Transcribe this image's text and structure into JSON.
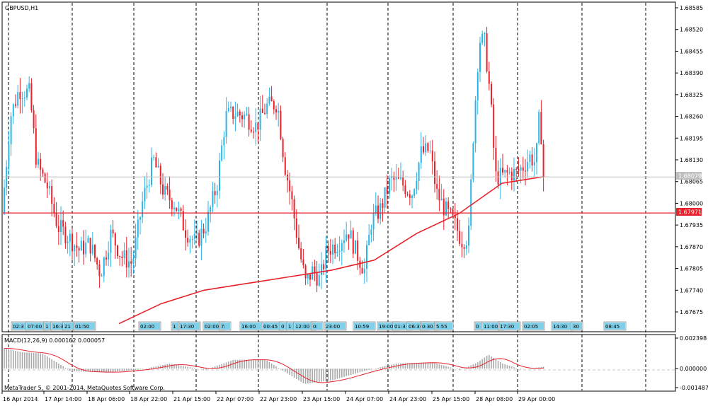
{
  "window": {
    "symbol_label": "GBPUSD,H1",
    "footer": "MetaTrader 5, © 2001-2014, MetaQuotes Software Corp."
  },
  "colors": {
    "bull": "#2ab5e8",
    "bear": "#e8212a",
    "ma": "#e8212a",
    "hline": "#e8212a",
    "bid": "#c0c0c0",
    "macd_hist": "#a9a9a9",
    "signal": "#e8212a",
    "grid": "#000000",
    "event_label": "#7fd0e8"
  },
  "price_axis": {
    "ticks": [
      "1.68585",
      "1.68520",
      "1.68455",
      "1.68390",
      "1.68325",
      "1.68260",
      "1.68195",
      "1.68130",
      "1.68065",
      "1.68000",
      "1.67935",
      "1.67870",
      "1.67805",
      "1.67740",
      "1.67675"
    ],
    "current_bid": "1.68079",
    "hline_label": "1.67971"
  },
  "time_axis": {
    "labels": [
      "16 Apr 2014",
      "17 Apr 14:00",
      "18 Apr 06:00",
      "18 Apr 22:00",
      "21 Apr 15:00",
      "22 Apr 07:00",
      "22 Apr 23:00",
      "23 Apr 15:00",
      "24 Apr 07:00",
      "24 Apr 23:00",
      "25 Apr 15:00",
      "28 Apr 08:00",
      "29 Apr 00:00"
    ]
  },
  "events": [
    "02:3",
    "07:00",
    "1",
    "16:3",
    "21",
    "01:50",
    "02:00",
    "1",
    "17:30",
    "02:00",
    "7:",
    "16:00",
    "00:45",
    "0",
    "1",
    "12:00",
    "0:",
    "23:00",
    "10:59",
    "19:00",
    "01:3",
    "06:30",
    "0:30",
    "5:55",
    "0",
    "11:00",
    "17:30",
    "02:05",
    "14:30",
    "30",
    "08:45"
  ],
  "indicator": {
    "label": "MACD(12,26,9) 0.000162 0.000057",
    "ticks": [
      "0.002398",
      "0.000000",
      "-0.001487"
    ]
  },
  "chart_data": {
    "type": "candlestick",
    "title": "GBPUSD,H1",
    "x_range": [
      "16 Apr 2014",
      "29 Apr 2014"
    ],
    "ylim": [
      1.6764,
      1.6861
    ],
    "lines": [
      {
        "name": "moving average",
        "values": [
          1.6764,
          1.677,
          1.6774,
          1.6776,
          1.6778,
          1.678,
          1.6783,
          1.6791,
          1.6797,
          1.6806,
          1.6808
        ]
      },
      {
        "name": "level",
        "value": 1.67971
      }
    ],
    "current_bid": 1.68079,
    "candles_summary": {
      "open": 1.6797,
      "high": 1.6858,
      "low": 1.6764,
      "close": 1.6808
    },
    "indicator": {
      "name": "MACD(12,26,9)",
      "main": 0.000162,
      "signal": 5.7e-05,
      "range": [
        -0.001487,
        0.002398
      ]
    }
  }
}
